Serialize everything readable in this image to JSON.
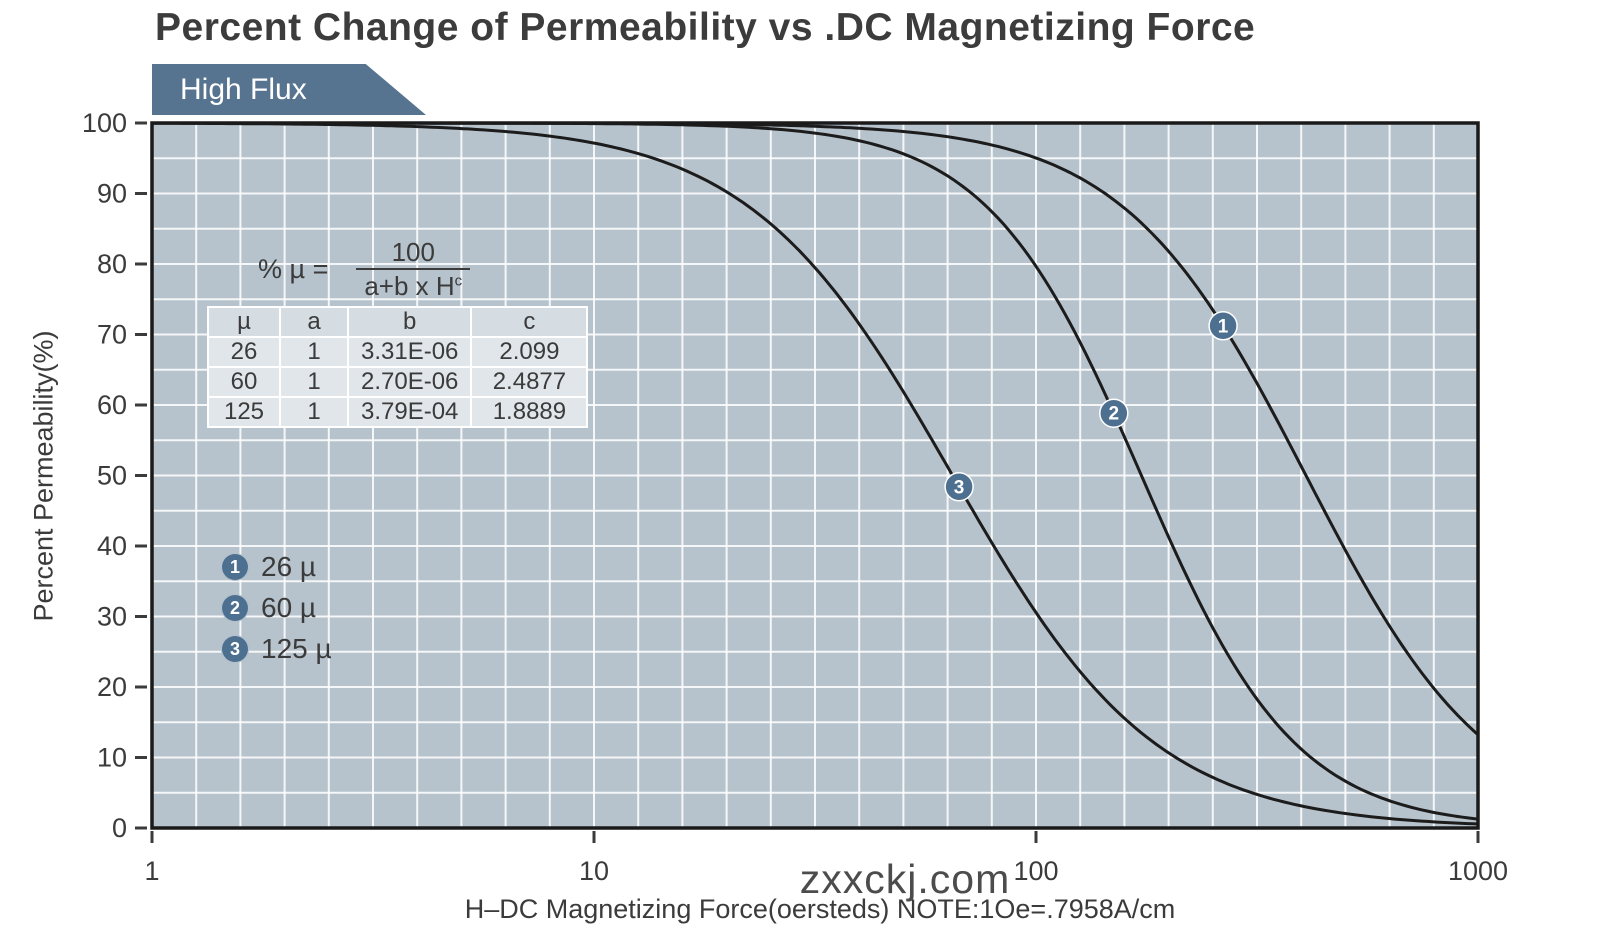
{
  "page": {
    "title": "Percent Change of Permeability vs .DC Magnetizing Force",
    "banner": "High Flux",
    "watermark": "zxxckj.com"
  },
  "formula": {
    "lhs": "% µ =",
    "numerator": "100",
    "denominator": "a+b x H",
    "exponent": "c"
  },
  "colors": {
    "banner": "#567490",
    "marker": "#4e7090",
    "plot_bg": "#b7c3cc",
    "grid": "#ffffff",
    "curve": "#1c1c1c",
    "text": "#3b3b3b",
    "axis": "#3b3b3b"
  },
  "chart_data": {
    "type": "line",
    "title": "Percent Change of Permeability vs .DC Magnetizing Force",
    "material": "High Flux",
    "model": "percent_mu = 100 / (a + b * H^c)",
    "x_axis": {
      "label": "H–DC Magnetizing Force(oersteds) NOTE:1Oe=.7958A/cm",
      "scale": "log",
      "range": [
        1,
        1000
      ],
      "ticks": [
        "1",
        "10",
        "100",
        "1000"
      ]
    },
    "y_axis": {
      "label": "Percent Permeability(%)",
      "scale": "linear",
      "range": [
        0,
        100
      ],
      "ticks": [
        "100",
        "90",
        "80",
        "70",
        "60",
        "50",
        "40",
        "30",
        "20",
        "10",
        "0"
      ],
      "tick_values": [
        100,
        90,
        80,
        70,
        60,
        50,
        40,
        30,
        20,
        10,
        0
      ]
    },
    "grid": {
      "color": "#ffffff",
      "vertical_divisions": 30,
      "horizontal_step": 5
    },
    "legend_position": "lower-left-inside",
    "series": [
      {
        "marker": "1",
        "label": "26 µ",
        "mu": 26,
        "a": 1,
        "b": 3.31e-06,
        "c": 2.099,
        "marker_H": 265,
        "points": [
          [
            1,
            100.0
          ],
          [
            10,
            100.0
          ],
          [
            30,
            99.6
          ],
          [
            100,
            95.0
          ],
          [
            300,
            65.6
          ],
          [
            1000,
            13.2
          ]
        ]
      },
      {
        "marker": "2",
        "label": "60 µ",
        "mu": 60,
        "a": 1,
        "b": 2.7e-06,
        "c": 2.4877,
        "marker_H": 150,
        "points": [
          [
            1,
            100.0
          ],
          [
            10,
            99.9
          ],
          [
            30,
            98.7
          ],
          [
            100,
            79.7
          ],
          [
            300,
            20.3
          ],
          [
            1000,
            1.3
          ]
        ]
      },
      {
        "marker": "3",
        "label": "125 µ",
        "mu": 125,
        "a": 1,
        "b": 0.000379,
        "c": 1.8889,
        "marker_H": 67,
        "points": [
          [
            1,
            100.0
          ],
          [
            10,
            97.2
          ],
          [
            30,
            81.1
          ],
          [
            100,
            30.6
          ],
          [
            300,
            5.2
          ],
          [
            1000,
            0.6
          ]
        ]
      }
    ],
    "table": {
      "headers": [
        "µ",
        "a",
        "b",
        "c"
      ],
      "rows": [
        [
          "26",
          "1",
          "3.31E-06",
          "2.099"
        ],
        [
          "60",
          "1",
          "2.70E-06",
          "2.4877"
        ],
        [
          "125",
          "1",
          "3.79E-04",
          "1.8889"
        ]
      ]
    }
  }
}
